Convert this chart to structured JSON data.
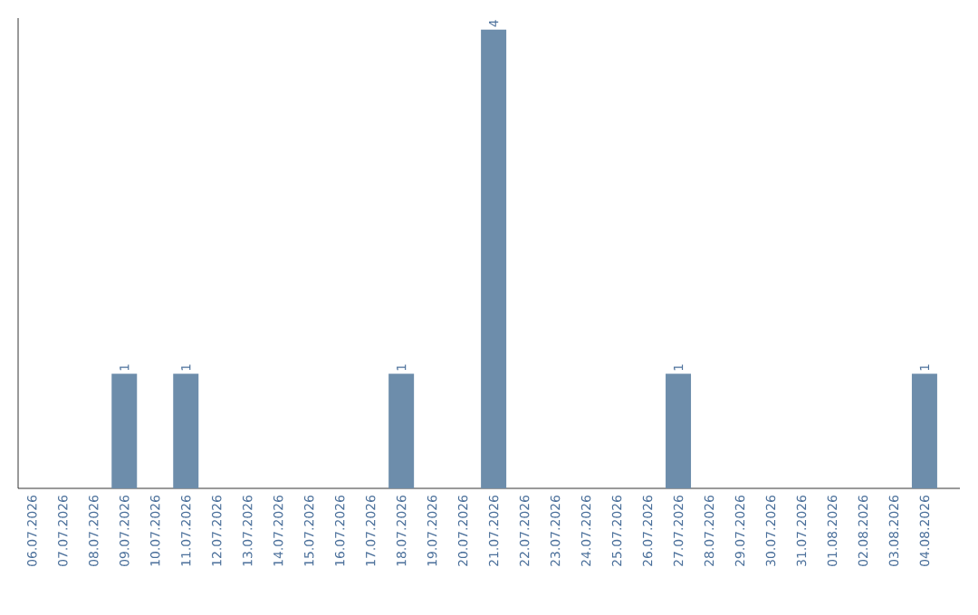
{
  "chart_data": {
    "type": "bar",
    "categories": [
      "06.07.2026",
      "07.07.2026",
      "08.07.2026",
      "09.07.2026",
      "10.07.2026",
      "11.07.2026",
      "12.07.2026",
      "13.07.2026",
      "14.07.2026",
      "15.07.2026",
      "16.07.2026",
      "17.07.2026",
      "18.07.2026",
      "19.07.2026",
      "20.07.2026",
      "21.07.2026",
      "22.07.2026",
      "23.07.2026",
      "24.07.2026",
      "25.07.2026",
      "26.07.2026",
      "27.07.2026",
      "28.07.2026",
      "29.07.2026",
      "30.07.2026",
      "31.07.2026",
      "01.08.2026",
      "02.08.2026",
      "03.08.2026",
      "04.08.2026"
    ],
    "values": [
      0,
      0,
      0,
      1,
      0,
      1,
      0,
      0,
      0,
      0,
      0,
      0,
      1,
      0,
      0,
      4,
      0,
      0,
      0,
      0,
      0,
      1,
      0,
      0,
      0,
      0,
      0,
      0,
      0,
      1
    ],
    "value_labels": [
      null,
      null,
      null,
      "1",
      null,
      "1",
      null,
      null,
      null,
      null,
      null,
      null,
      "1",
      null,
      null,
      "4",
      null,
      null,
      null,
      null,
      null,
      "1",
      null,
      null,
      null,
      null,
      null,
      null,
      null,
      "1"
    ],
    "color": "#6d8dab",
    "ylim": [
      0,
      4.1
    ],
    "tick_labels": "x"
  }
}
